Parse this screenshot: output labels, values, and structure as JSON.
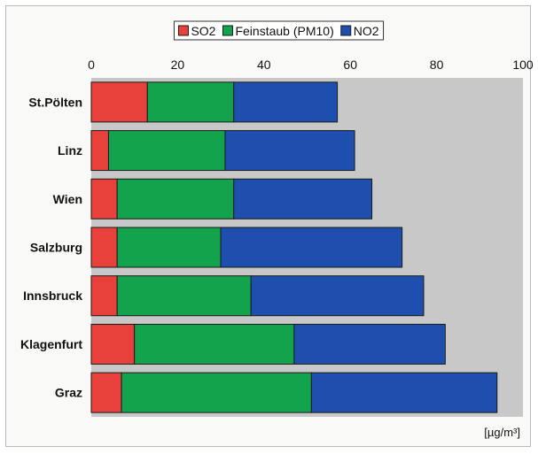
{
  "chart_data": {
    "type": "bar",
    "orientation": "horizontal",
    "stacked": true,
    "categories": [
      "St.Pölten",
      "Linz",
      "Wien",
      "Salzburg",
      "Innsbruck",
      "Klagenfurt",
      "Graz"
    ],
    "series": [
      {
        "name": "SO2",
        "color": "#e8413c",
        "values": [
          13,
          4,
          6,
          6,
          6,
          10,
          7
        ]
      },
      {
        "name": "Feinstaub (PM10)",
        "color": "#14a34d",
        "values": [
          20,
          27,
          27,
          24,
          31,
          37,
          44
        ]
      },
      {
        "name": "NO2",
        "color": "#1f4fae",
        "values": [
          24,
          30,
          32,
          42,
          40,
          35,
          43
        ]
      }
    ],
    "xlim": [
      0,
      100
    ],
    "xticks": [
      0,
      20,
      40,
      60,
      80,
      100
    ],
    "xlabel": "",
    "ylabel": "",
    "unit_label": "[µg/m³]",
    "legend_position": "top-center",
    "plot_background": "#c8c8c8",
    "grid": false
  }
}
